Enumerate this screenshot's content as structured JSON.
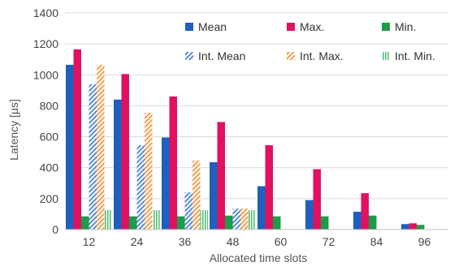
{
  "chart_data": {
    "type": "bar",
    "xlabel": "Allocated time slots",
    "ylabel": "Latency [µs]",
    "ylim": [
      0,
      1400
    ],
    "yticks": [
      0,
      200,
      400,
      600,
      800,
      1000,
      1200,
      1400
    ],
    "grid": "horizontal",
    "legend_placement": "top-right",
    "categories": [
      "12",
      "24",
      "36",
      "48",
      "60",
      "72",
      "84",
      "96"
    ],
    "series": [
      {
        "name": "Mean",
        "color": "#1f5fbf",
        "pattern": "solid",
        "values": [
          1065,
          840,
          595,
          435,
          280,
          190,
          115,
          35
        ]
      },
      {
        "name": "Max.",
        "color": "#e0115f",
        "pattern": "solid",
        "values": [
          1165,
          1005,
          860,
          695,
          545,
          390,
          235,
          40
        ]
      },
      {
        "name": "Min.",
        "color": "#1e9a4a",
        "pattern": "solid",
        "values": [
          85,
          85,
          85,
          90,
          85,
          85,
          90,
          30
        ]
      },
      {
        "name": "Int. Mean",
        "color": "#5a8ad8",
        "pattern": "diagonal",
        "values": [
          940,
          545,
          240,
          135,
          null,
          null,
          null,
          null
        ]
      },
      {
        "name": "Int. Max.",
        "color": "#f0a050",
        "pattern": "diagonal",
        "values": [
          1065,
          755,
          445,
          135,
          null,
          null,
          null,
          null
        ]
      },
      {
        "name": "Int. Min.",
        "color": "#55c077",
        "pattern": "vertical",
        "values": [
          125,
          125,
          125,
          125,
          null,
          null,
          null,
          null
        ]
      }
    ]
  }
}
